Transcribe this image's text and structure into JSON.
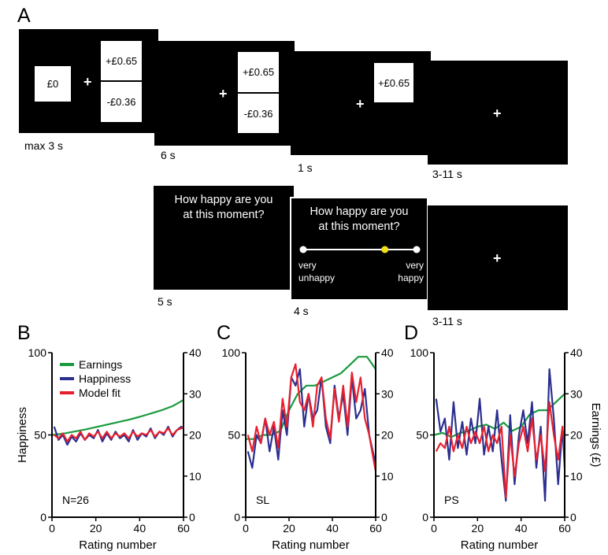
{
  "panels": {
    "a": "A",
    "b": "B",
    "c": "C",
    "d": "D"
  },
  "task": {
    "screen1": {
      "left_box": "£0",
      "gain": "+£0.65",
      "loss": "-£0.36",
      "caption": "max 3 s"
    },
    "screen2": {
      "gain": "+£0.65",
      "loss": "-£0.36",
      "caption": "6 s"
    },
    "screen3": {
      "outcome": "+£0.65",
      "caption": "1 s"
    },
    "screen4": {
      "caption": "3-11 s"
    },
    "question": {
      "line1": "How happy are you",
      "line2": "at this moment?",
      "caption": "5 s"
    },
    "rating": {
      "line1": "How happy are you",
      "line2": "at this moment?",
      "left_line1": "very",
      "left_line2": "unhappy",
      "right_line1": "very",
      "right_line2": "happy",
      "cursor_position": 0.72,
      "caption": "4 s"
    },
    "screen7": {
      "caption": "3-11 s"
    },
    "fixation": "+"
  },
  "colors": {
    "earnings": "#1a9a3e",
    "happiness": "#2b2f8f",
    "model_fit": "#e8202e",
    "cursor": "#f3e01a",
    "screen": "#000000",
    "box": "#ffffff"
  },
  "chart_data": [
    {
      "panel": "B",
      "type": "line",
      "xlabel": "Rating number",
      "ylabel": "Happiness",
      "y2label": "",
      "xlim": [
        0,
        60
      ],
      "ylim": [
        0,
        100
      ],
      "y2lim": [
        0,
        40
      ],
      "xticks": [
        0,
        20,
        40,
        60
      ],
      "yticks": [
        0,
        50,
        100
      ],
      "y2ticks": [
        0,
        10,
        20,
        30,
        40
      ],
      "legend": [
        "Earnings",
        "Happiness",
        "Model fit"
      ],
      "legend_position": "top-left",
      "annotation": "N=26",
      "series": [
        {
          "name": "Earnings",
          "axis": "right",
          "x": [
            0,
            5,
            10,
            15,
            20,
            25,
            30,
            35,
            40,
            45,
            50,
            55,
            60
          ],
          "values": [
            20,
            20.3,
            20.8,
            21.3,
            21.9,
            22.5,
            23.1,
            23.7,
            24.4,
            25.2,
            26.0,
            27.0,
            28.5
          ]
        },
        {
          "name": "Happiness",
          "axis": "left",
          "x": [
            1,
            3,
            5,
            7,
            9,
            11,
            13,
            15,
            17,
            19,
            21,
            23,
            25,
            27,
            29,
            31,
            33,
            35,
            37,
            39,
            41,
            43,
            45,
            47,
            49,
            51,
            53,
            55,
            57,
            59,
            60
          ],
          "values": [
            55,
            47,
            50,
            44,
            49,
            46,
            51,
            47,
            50,
            48,
            53,
            46,
            51,
            47,
            52,
            48,
            50,
            46,
            53,
            47,
            51,
            49,
            54,
            48,
            52,
            50,
            55,
            49,
            53,
            55,
            54
          ]
        },
        {
          "name": "Model fit",
          "axis": "left",
          "x": [
            1,
            3,
            5,
            7,
            9,
            11,
            13,
            15,
            17,
            19,
            21,
            23,
            25,
            27,
            29,
            31,
            33,
            35,
            37,
            39,
            41,
            43,
            45,
            47,
            49,
            51,
            53,
            55,
            57,
            59,
            60
          ],
          "values": [
            50,
            48,
            51,
            46,
            50,
            48,
            52,
            47,
            51,
            49,
            52,
            48,
            52,
            48,
            51,
            49,
            51,
            48,
            52,
            49,
            51,
            50,
            53,
            49,
            52,
            51,
            54,
            50,
            53,
            54,
            55
          ]
        }
      ]
    },
    {
      "panel": "C",
      "type": "line",
      "xlabel": "Rating number",
      "ylabel": "",
      "y2label": "",
      "xlim": [
        0,
        60
      ],
      "ylim": [
        0,
        100
      ],
      "y2lim": [
        0,
        40
      ],
      "xticks": [
        0,
        20,
        40,
        60
      ],
      "yticks": [
        0,
        50,
        100
      ],
      "y2ticks": [
        0,
        10,
        20,
        30,
        40
      ],
      "annotation": "SL",
      "series": [
        {
          "name": "Earnings",
          "axis": "right",
          "x": [
            0,
            4,
            8,
            12,
            16,
            20,
            24,
            28,
            32,
            36,
            40,
            44,
            48,
            52,
            56,
            60
          ],
          "values": [
            19,
            19,
            20,
            20,
            21,
            26,
            30,
            32,
            32,
            33,
            34,
            35,
            37,
            39,
            39,
            36
          ]
        },
        {
          "name": "Happiness",
          "axis": "left",
          "x": [
            1,
            3,
            5,
            7,
            9,
            11,
            13,
            15,
            17,
            19,
            21,
            23,
            25,
            27,
            29,
            31,
            33,
            35,
            37,
            39,
            41,
            43,
            45,
            47,
            49,
            51,
            53,
            55,
            57,
            59,
            60
          ],
          "values": [
            40,
            30,
            50,
            45,
            60,
            40,
            55,
            35,
            65,
            50,
            85,
            80,
            90,
            55,
            75,
            60,
            65,
            85,
            55,
            45,
            80,
            60,
            75,
            50,
            85,
            60,
            65,
            78,
            50,
            38,
            32
          ]
        },
        {
          "name": "Model fit",
          "axis": "left",
          "x": [
            1,
            3,
            5,
            7,
            9,
            11,
            13,
            15,
            17,
            19,
            21,
            23,
            25,
            27,
            29,
            31,
            33,
            35,
            37,
            39,
            41,
            43,
            45,
            47,
            49,
            51,
            53,
            55,
            57,
            59,
            60
          ],
          "values": [
            50,
            40,
            55,
            45,
            60,
            50,
            58,
            42,
            72,
            55,
            85,
            93,
            70,
            65,
            75,
            55,
            80,
            85,
            60,
            48,
            78,
            58,
            80,
            55,
            88,
            70,
            85,
            60,
            50,
            35,
            28
          ]
        }
      ]
    },
    {
      "panel": "D",
      "type": "line",
      "xlabel": "Rating number",
      "ylabel": "",
      "y2label": "Earnings (£)",
      "xlim": [
        0,
        60
      ],
      "ylim": [
        0,
        100
      ],
      "y2lim": [
        0,
        40
      ],
      "xticks": [
        0,
        20,
        40,
        60
      ],
      "yticks": [
        0,
        50,
        100
      ],
      "y2ticks": [
        0,
        10,
        20,
        30,
        40
      ],
      "annotation": "PS",
      "series": [
        {
          "name": "Earnings",
          "axis": "right",
          "x": [
            0,
            4,
            8,
            12,
            16,
            20,
            24,
            28,
            32,
            36,
            40,
            44,
            48,
            52,
            56,
            60
          ],
          "values": [
            20,
            20.5,
            19.5,
            20.5,
            21,
            22,
            22.5,
            21.5,
            23,
            21,
            22,
            25,
            26,
            26,
            28,
            30
          ]
        },
        {
          "name": "Happiness",
          "axis": "left",
          "x": [
            1,
            3,
            5,
            7,
            9,
            11,
            13,
            15,
            17,
            19,
            21,
            23,
            25,
            27,
            29,
            31,
            33,
            35,
            37,
            39,
            41,
            43,
            45,
            47,
            49,
            51,
            53,
            55,
            57,
            59,
            60
          ],
          "values": [
            72,
            52,
            60,
            35,
            70,
            42,
            58,
            38,
            60,
            45,
            72,
            38,
            55,
            40,
            65,
            35,
            10,
            62,
            20,
            50,
            65,
            45,
            70,
            30,
            55,
            10,
            90,
            60,
            20,
            55,
            30
          ]
        },
        {
          "name": "Model fit",
          "axis": "left",
          "x": [
            1,
            3,
            5,
            7,
            9,
            11,
            13,
            15,
            17,
            19,
            21,
            23,
            25,
            27,
            29,
            31,
            33,
            35,
            37,
            39,
            41,
            43,
            45,
            47,
            49,
            51,
            53,
            55,
            57,
            59,
            60
          ],
          "values": [
            40,
            45,
            42,
            55,
            40,
            50,
            42,
            55,
            45,
            52,
            45,
            55,
            40,
            50,
            45,
            55,
            12,
            50,
            25,
            45,
            55,
            40,
            60,
            35,
            50,
            28,
            70,
            50,
            35,
            55,
            42
          ]
        }
      ]
    }
  ]
}
